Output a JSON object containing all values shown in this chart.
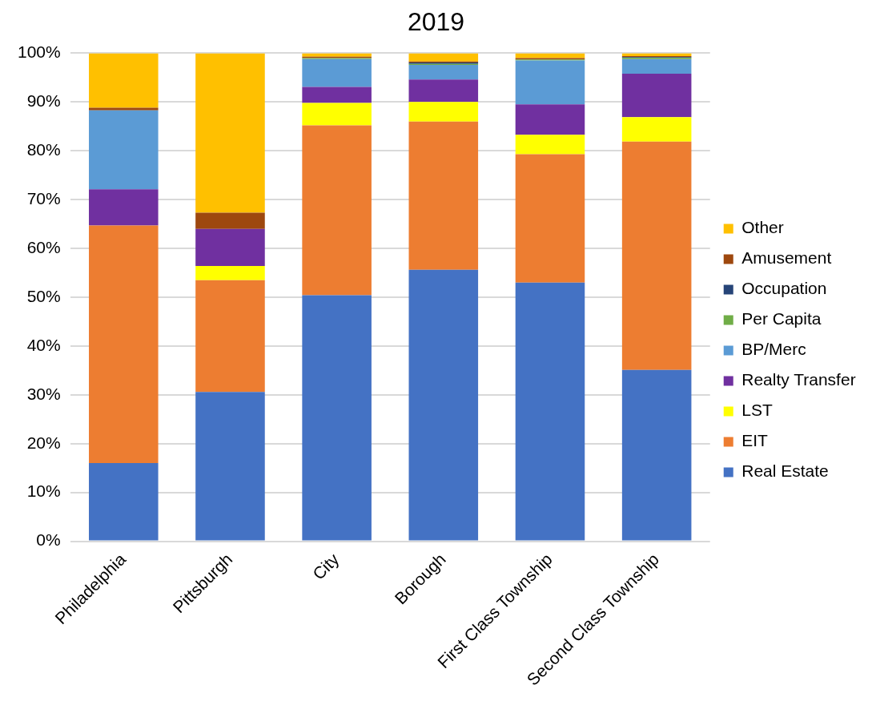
{
  "chart_data": {
    "type": "bar",
    "title": "2019",
    "stacked": true,
    "categories": [
      "Philadelphia",
      "Pittsburgh",
      "City",
      "Borough",
      "First Class Township",
      "Second Class Township"
    ],
    "series": [
      {
        "name": "Real Estate",
        "color": "#4472c4",
        "values": [
          16.0,
          30.6,
          50.4,
          55.6,
          53.0,
          35.1
        ]
      },
      {
        "name": "EIT",
        "color": "#ed7d31",
        "values": [
          48.7,
          22.9,
          34.8,
          30.4,
          26.3,
          46.8
        ]
      },
      {
        "name": "LST",
        "color": "#ffff00",
        "values": [
          0,
          2.9,
          4.6,
          4.0,
          4.0,
          5.0
        ]
      },
      {
        "name": "Realty Transfer",
        "color": "#7030a0",
        "values": [
          7.4,
          7.6,
          3.3,
          4.6,
          6.2,
          8.9
        ]
      },
      {
        "name": "BP/Merc",
        "color": "#5b9bd5",
        "values": [
          16.2,
          0,
          5.7,
          3.0,
          9.0,
          3.0
        ]
      },
      {
        "name": "Per Capita",
        "color": "#70ad47",
        "values": [
          0,
          0,
          0.2,
          0.2,
          0.2,
          0.3
        ]
      },
      {
        "name": "Occupation",
        "color": "#264478",
        "values": [
          0,
          0,
          0,
          0.3,
          0,
          0.1
        ]
      },
      {
        "name": "Amusement",
        "color": "#9e480e",
        "values": [
          0.5,
          3.3,
          0.3,
          0.2,
          0.3,
          0.2
        ]
      },
      {
        "name": "Other",
        "color": "#ffc000",
        "values": [
          11.2,
          32.7,
          0.7,
          1.7,
          1.0,
          0.6
        ]
      }
    ],
    "ylim": [
      0,
      100
    ],
    "yticks": [
      {
        "value": 0,
        "label": "0%"
      },
      {
        "value": 10,
        "label": "10%"
      },
      {
        "value": 20,
        "label": "20%"
      },
      {
        "value": 30,
        "label": "30%"
      },
      {
        "value": 40,
        "label": "40%"
      },
      {
        "value": 50,
        "label": "50%"
      },
      {
        "value": 60,
        "label": "60%"
      },
      {
        "value": 70,
        "label": "70%"
      },
      {
        "value": 80,
        "label": "80%"
      },
      {
        "value": 90,
        "label": "90%"
      },
      {
        "value": 100,
        "label": "100%"
      }
    ],
    "grid": "y",
    "legend": "right"
  }
}
